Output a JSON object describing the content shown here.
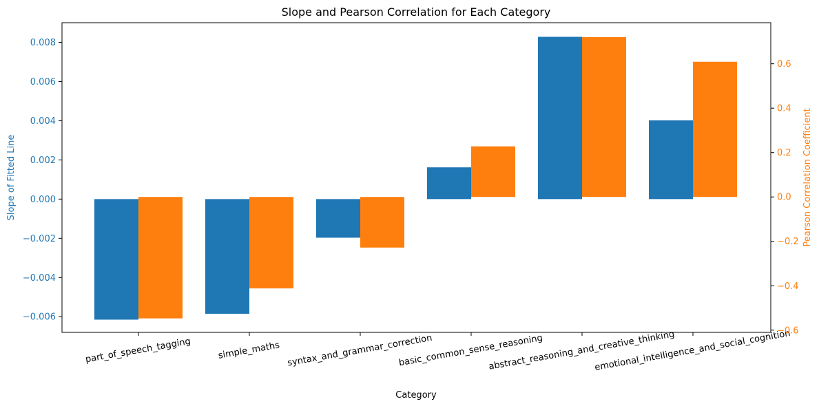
{
  "chart_data": {
    "type": "bar",
    "title": "Slope and Pearson Correlation for Each Category",
    "xlabel": "Category",
    "ylabel_left": "Slope of Fitted Line",
    "ylabel_right": "Pearson Correlation Coefficient",
    "categories": [
      "part_of_speech_tagging",
      "simple_maths",
      "syntax_and_grammar_correction",
      "basic_common_sense_reasoning",
      "abstract_reasoning_and_creative_thinking",
      "emotional_intelligence_and_social_cognition"
    ],
    "series": [
      {
        "axis": "left",
        "color": "#1f77b4",
        "values": [
          -0.00615,
          -0.00585,
          -0.00197,
          0.00162,
          0.00828,
          0.00402
        ]
      },
      {
        "axis": "right",
        "color": "#ff7f0e",
        "values": [
          -0.547,
          -0.412,
          -0.228,
          0.228,
          0.72,
          0.609
        ]
      }
    ],
    "ylim_left": [
      -0.0068,
      0.009
    ],
    "ylim_right": [
      -0.61,
      0.785
    ],
    "yticks_left": [
      "0.008",
      "0.006",
      "0.004",
      "0.002",
      "0.000",
      "−0.002",
      "−0.004",
      "−0.006"
    ],
    "yticks_right": [
      "0.6",
      "0.4",
      "0.2",
      "0.0",
      "−0.2",
      "−0.4",
      "−0.6"
    ],
    "grid": false,
    "legend": "none"
  }
}
